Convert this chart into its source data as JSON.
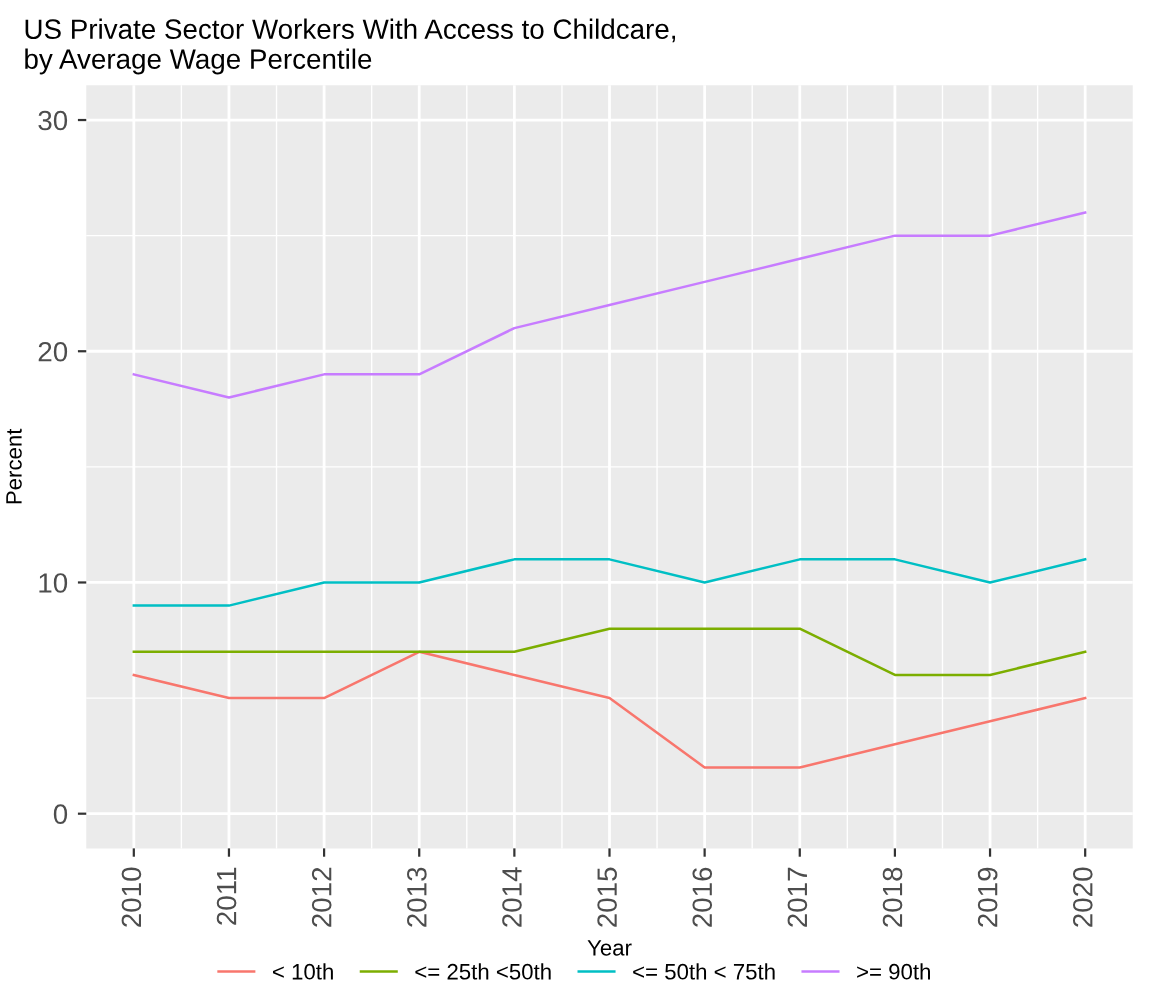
{
  "chart_data": {
    "type": "line",
    "title": "US Private Sector Workers With Access to Childcare,\nby Average Wage Percentile",
    "xlabel": "Year",
    "ylabel": "Percent",
    "x": [
      2010,
      2011,
      2012,
      2013,
      2014,
      2015,
      2016,
      2017,
      2018,
      2019,
      2020
    ],
    "series": [
      {
        "name": "< 10th",
        "color": "#f8766d",
        "values": [
          6,
          5,
          5,
          7,
          6,
          5,
          2,
          2,
          3,
          4,
          5
        ]
      },
      {
        "name": "<= 25th <50th",
        "color": "#7cae00",
        "values": [
          7,
          7,
          7,
          7,
          7,
          8,
          8,
          8,
          6,
          6,
          7
        ]
      },
      {
        "name": "<= 50th < 75th",
        "color": "#00bfc4",
        "values": [
          9,
          9,
          10,
          10,
          11,
          11,
          10,
          11,
          11,
          10,
          11
        ]
      },
      {
        "name": ">= 90th",
        "color": "#c77cff",
        "values": [
          19,
          18,
          19,
          19,
          21,
          22,
          23,
          24,
          25,
          25,
          26
        ]
      }
    ],
    "xlim": [
      2009.5,
      2020.5
    ],
    "xticks": [
      2010,
      2011,
      2012,
      2013,
      2014,
      2015,
      2016,
      2017,
      2018,
      2019,
      2020
    ],
    "ylim": [
      -1.5,
      31.5
    ],
    "yticks": [
      0,
      10,
      20,
      30
    ],
    "grid": true,
    "legend": "bottom",
    "line_style": "solid"
  }
}
